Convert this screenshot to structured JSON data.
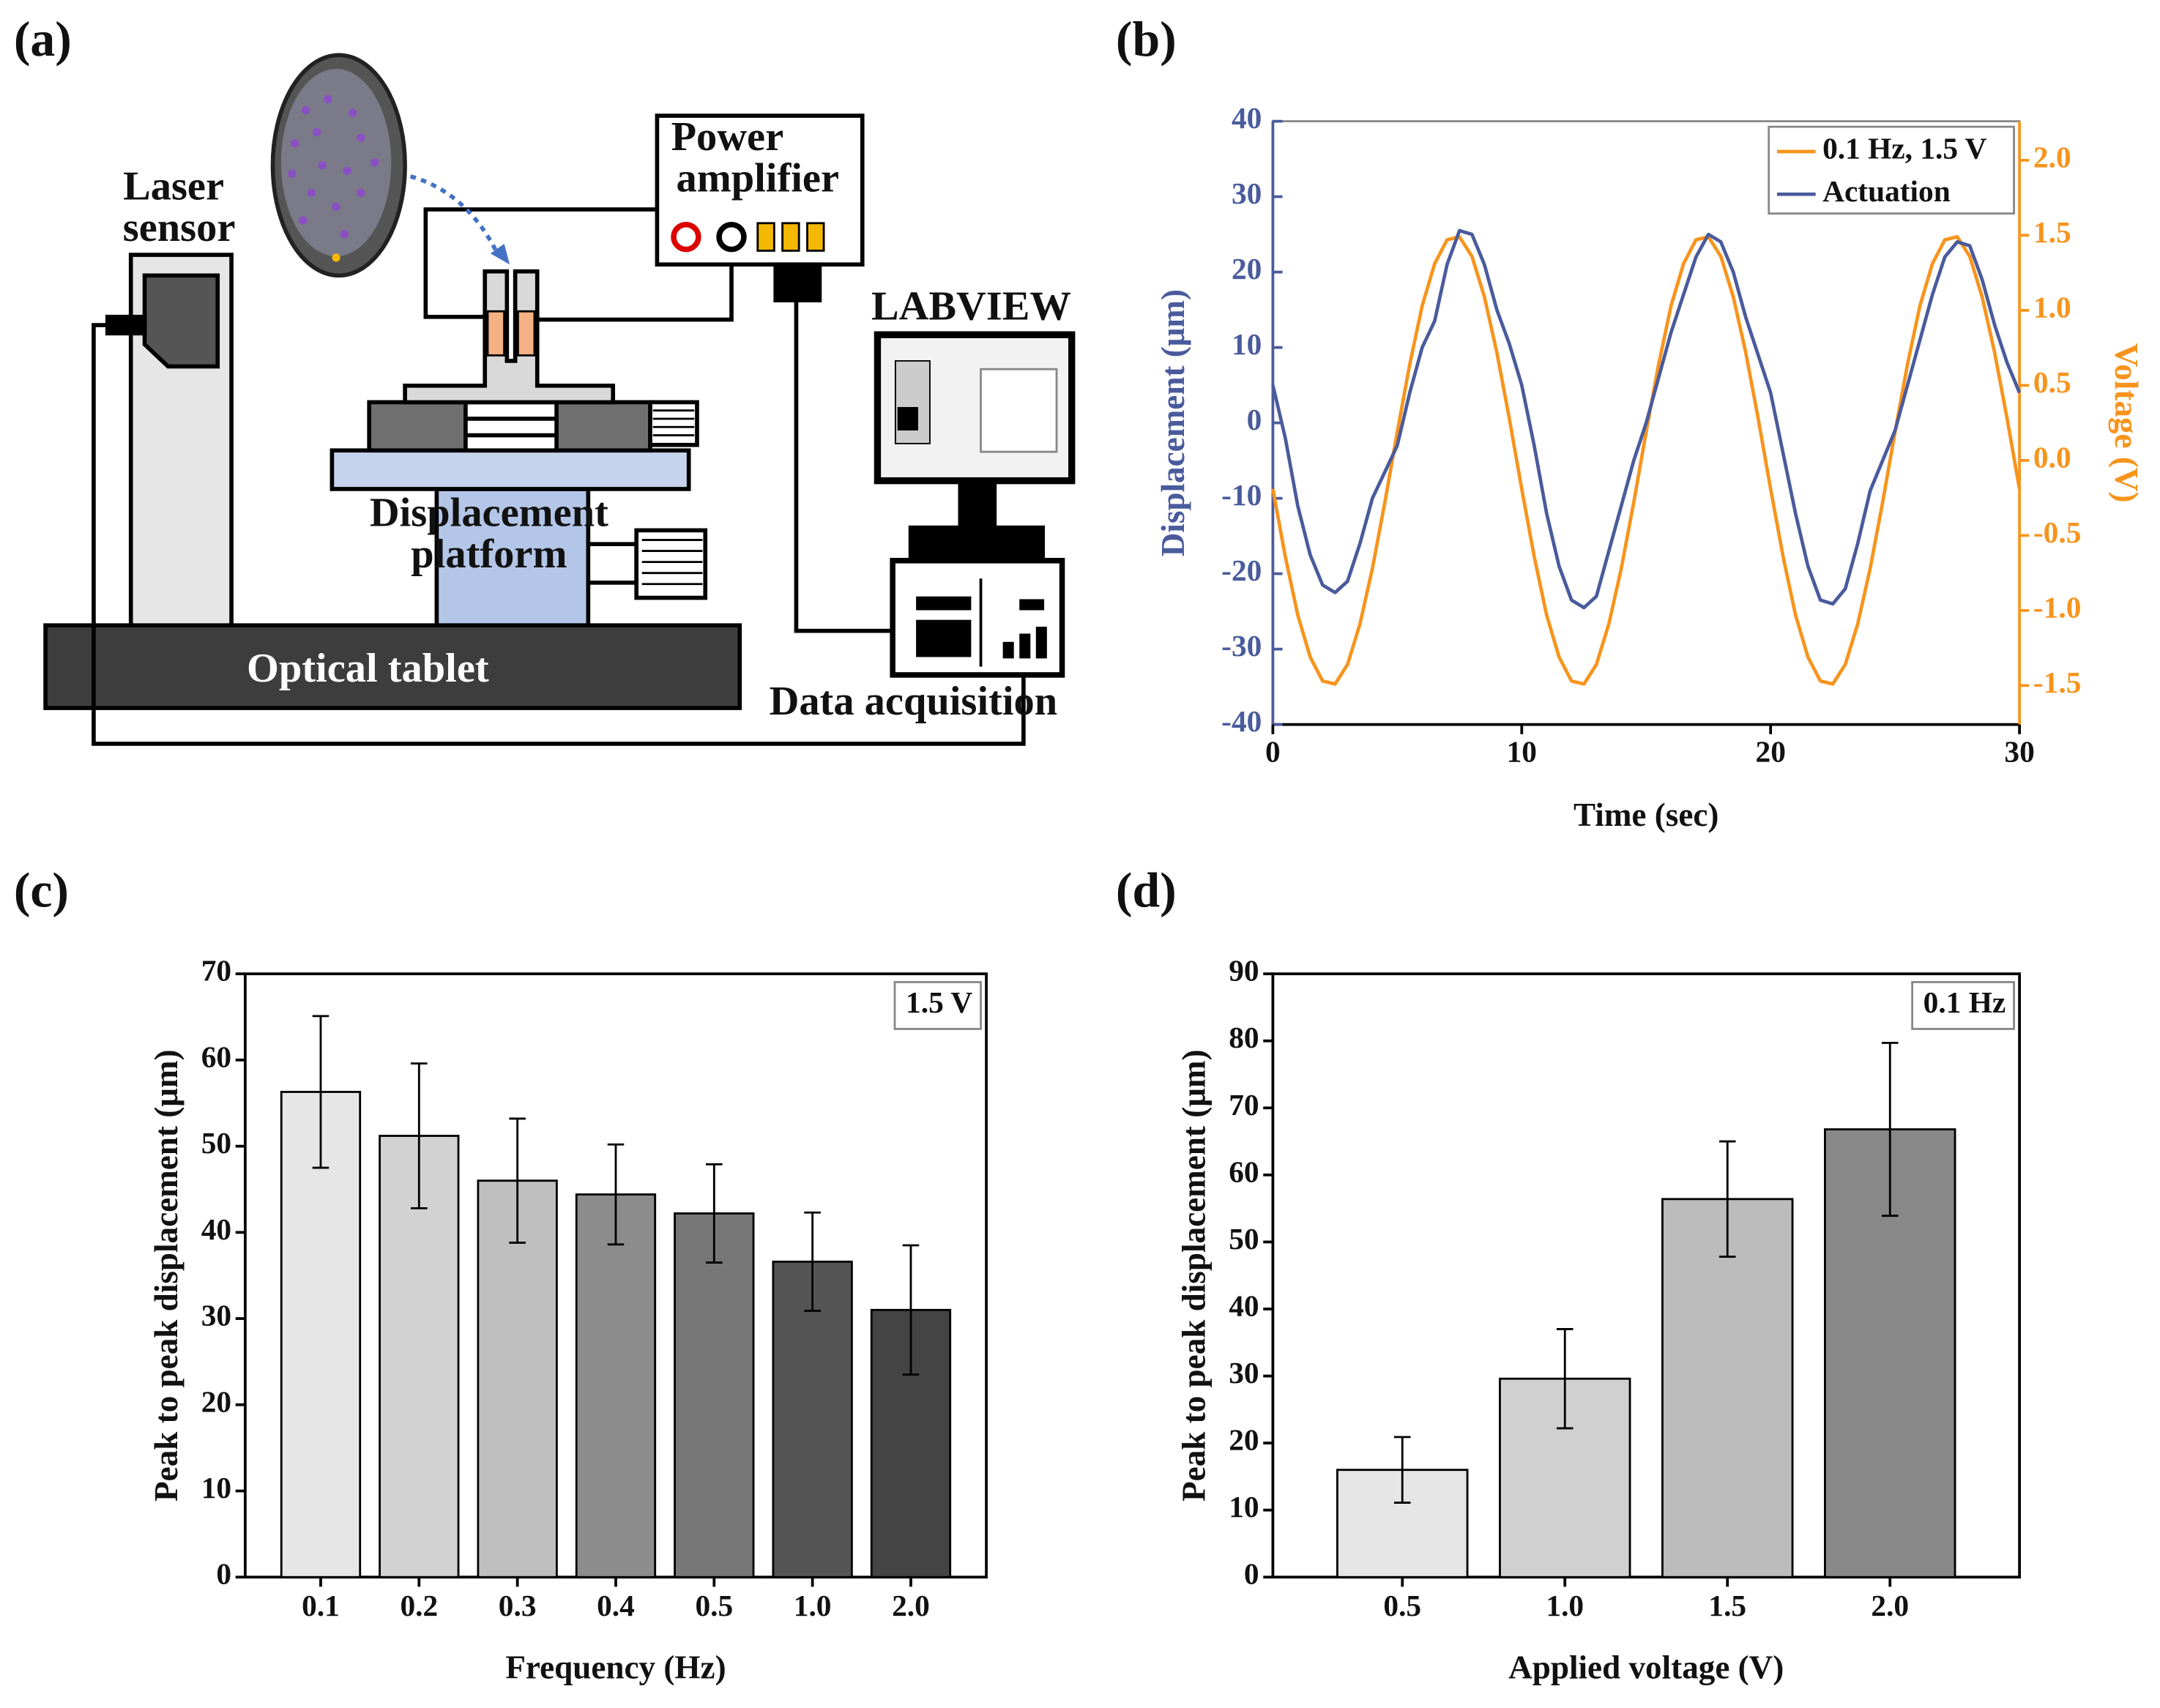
{
  "panel_labels": [
    "(a)",
    "(b)",
    "(c)",
    "(d)"
  ],
  "diagram": {
    "labels": {
      "laser_sensor": [
        "Laser",
        "sensor"
      ],
      "power_amplifier": [
        "Power",
        "amplifier"
      ],
      "labview": "LABVIEW",
      "displacement_platform": [
        "Displacement",
        "platform"
      ],
      "optical_tablet": "Optical tablet",
      "data_acquisition": "Data acquisition"
    }
  },
  "chart_data": [
    {
      "type": "line",
      "xlabel": "Time (sec)",
      "ylabel": "Displacement (μm)",
      "y2label": "Voltage (V)",
      "x": [
        0,
        0.5,
        1,
        1.5,
        2,
        2.5,
        3,
        3.5,
        4,
        4.5,
        5,
        5.5,
        6,
        6.5,
        7,
        7.5,
        8,
        8.5,
        9,
        9.5,
        10,
        10.5,
        11,
        11.5,
        12,
        12.5,
        13,
        13.5,
        14,
        14.5,
        15,
        15.5,
        16,
        16.5,
        17,
        17.5,
        18,
        18.5,
        19,
        19.5,
        20,
        20.5,
        21,
        21.5,
        22,
        22.5,
        23,
        23.5,
        24,
        24.5,
        25,
        25.5,
        26,
        26.5,
        27,
        27.5,
        28,
        28.5,
        29,
        29.5,
        30
      ],
      "xlim": [
        0,
        30
      ],
      "xticks": [
        0,
        10,
        20,
        30
      ],
      "ylim": [
        -40,
        40
      ],
      "yticks": [
        -40,
        -30,
        -20,
        -10,
        0,
        10,
        20,
        30,
        40
      ],
      "y2lim": [
        -1.76,
        2.26
      ],
      "y2ticks": [
        -1.5,
        {
          "value": -1.0,
          "label": "-1.0"
        },
        -0.5,
        {
          "value": 0,
          "label": "0.0"
        },
        0.5,
        {
          "value": 1.0,
          "label": "1.0"
        },
        1.5,
        {
          "value": 2.0,
          "label": "2.0"
        }
      ],
      "legend": "upper right",
      "series": [
        {
          "name": "0.1 Hz, 1.5 V",
          "color": "#f7941d",
          "axis": "y2",
          "values": [
            -0.19,
            -0.64,
            -1.03,
            -1.31,
            -1.47,
            -1.49,
            -1.36,
            -1.09,
            -0.72,
            -0.28,
            0.19,
            0.64,
            1.03,
            1.31,
            1.47,
            1.49,
            1.36,
            1.09,
            0.72,
            0.28,
            -0.19,
            -0.64,
            -1.03,
            -1.31,
            -1.47,
            -1.49,
            -1.36,
            -1.09,
            -0.72,
            -0.28,
            0.19,
            0.64,
            1.03,
            1.31,
            1.47,
            1.49,
            1.36,
            1.09,
            0.72,
            0.28,
            -0.19,
            -0.64,
            -1.03,
            -1.31,
            -1.47,
            -1.49,
            -1.36,
            -1.09,
            -0.72,
            -0.28,
            0.19,
            0.64,
            1.03,
            1.31,
            1.47,
            1.49,
            1.36,
            1.09,
            0.72,
            0.28,
            -0.19
          ]
        },
        {
          "name": "Actuation",
          "color": "#4a5b9c",
          "values": [
            5,
            -2,
            -11,
            -17.5,
            -21.5,
            -22.5,
            -21,
            -16,
            -10,
            -6.5,
            -3,
            4,
            10,
            13.5,
            21,
            25.5,
            25,
            21,
            15,
            10.5,
            5,
            -3,
            -12,
            -19,
            -23.5,
            -24.5,
            -23,
            -17,
            -11,
            -5,
            0,
            6,
            12,
            17,
            22,
            25,
            24,
            20,
            14,
            9,
            4,
            -4,
            -12,
            -19,
            -23.5,
            -24,
            -22,
            -16,
            -9,
            -5,
            -1,
            5,
            11,
            17,
            22,
            24,
            23.5,
            19,
            13,
            8,
            4
          ]
        }
      ]
    },
    {
      "type": "bar",
      "xlabel": "Frequency (Hz)",
      "ylabel": "Peak to peak displacement (μm)",
      "annotation": "1.5 V",
      "categories": [
        "0.1",
        "0.2",
        "0.3",
        "0.4",
        "0.5",
        "1.0",
        "2.0"
      ],
      "values": [
        56.3,
        51.2,
        46.0,
        44.4,
        42.2,
        36.6,
        31.0
      ],
      "errors": [
        8.8,
        8.4,
        7.2,
        5.8,
        5.7,
        5.7,
        7.5
      ],
      "colors": [
        "#e6e6e6",
        "#d2d2d2",
        "#bfbfbf",
        "#8c8c8c",
        "#777777",
        "#555555",
        "#444444"
      ],
      "ylim": [
        0,
        70
      ],
      "yticks": [
        0,
        10,
        20,
        30,
        40,
        50,
        60,
        70
      ]
    },
    {
      "type": "bar",
      "xlabel": "Applied voltage (V)",
      "ylabel": "Peak to peak displacement (μm)",
      "annotation": "0.1 Hz",
      "categories": [
        "0.5",
        "1.0",
        "1.5",
        "2.0"
      ],
      "values": [
        16.0,
        29.6,
        56.4,
        66.8
      ],
      "errors": [
        4.9,
        7.4,
        8.6,
        12.9
      ],
      "colors": [
        "#e6e6e6",
        "#d0d0d0",
        "#bcbcbc",
        "#888888"
      ],
      "ylim": [
        0,
        90
      ],
      "yticks": [
        0,
        10,
        20,
        30,
        40,
        50,
        60,
        70,
        80,
        90
      ]
    }
  ]
}
